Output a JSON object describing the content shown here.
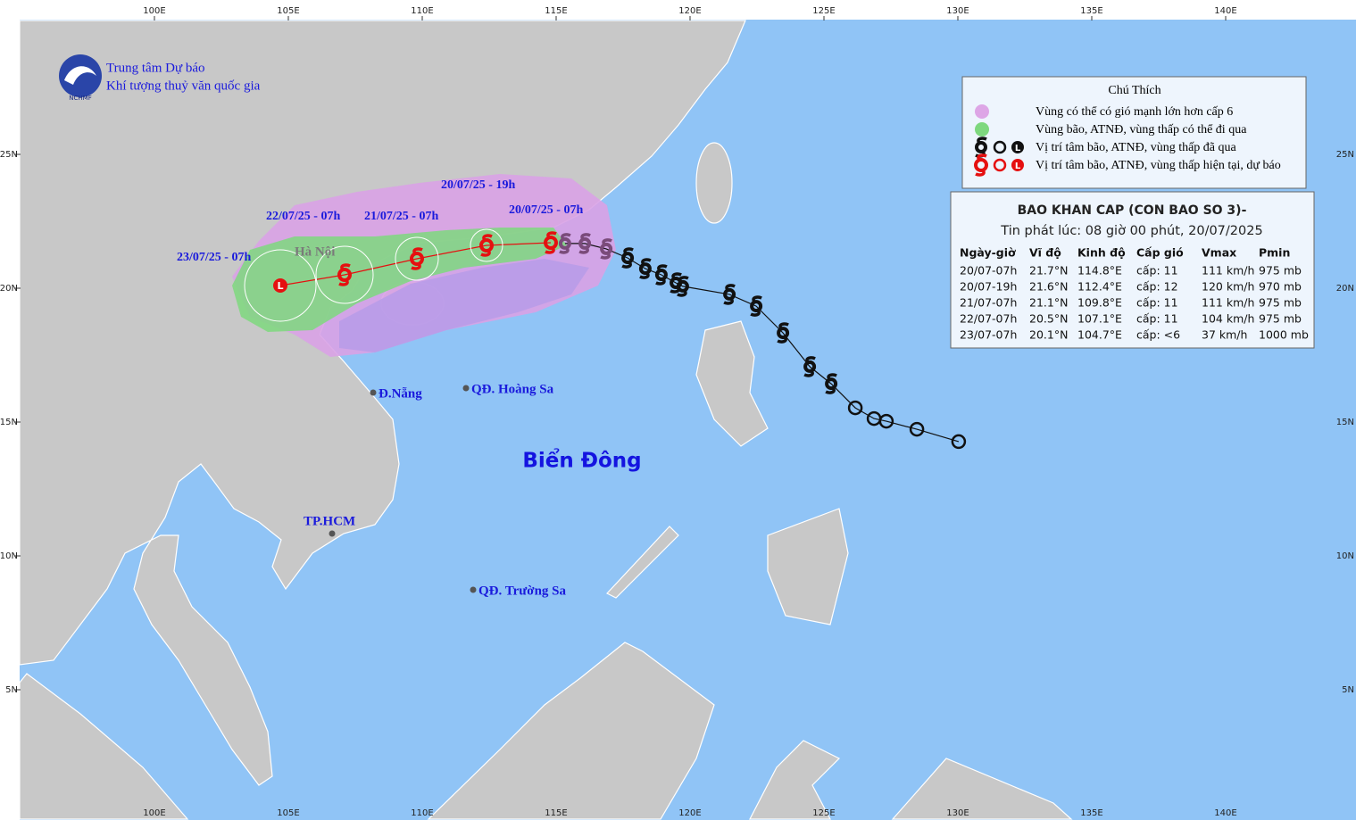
{
  "header": {
    "org_line1": "Trung tâm Dự báo",
    "org_line2": "Khí tượng thuỷ văn quốc gia",
    "logo_text": "NCHMF"
  },
  "legend": {
    "title": "Chú Thích",
    "items": [
      "Vùng có thể có gió mạnh lớn hơn cấp 6",
      "Vùng bão, ATNĐ, vùng thấp có thể đi qua",
      "Vị trí tâm bão, ATNĐ, vùng thấp đã qua",
      "Vị trí tâm bão, ATNĐ, vùng thấp hiện tại, dự báo"
    ]
  },
  "bulletin": {
    "title": "BAO KHAN CAP (CON BAO SO 3)-",
    "issued": "Tin phát lúc: 08 giờ 00 phút, 20/07/2025",
    "columns": [
      "Ngày-giờ",
      "Vĩ độ",
      "Kinh độ",
      "Cấp gió",
      "Vmax",
      "Pmin"
    ],
    "rows": [
      [
        "20/07-07h",
        "21.7°N",
        "114.8°E",
        "cấp: 11",
        "111 km/h",
        "975 mb"
      ],
      [
        "20/07-19h",
        "21.6°N",
        "112.4°E",
        "cấp: 12",
        "120 km/h",
        "970 mb"
      ],
      [
        "21/07-07h",
        "21.1°N",
        "109.8°E",
        "cấp: 11",
        "111 km/h",
        "975 mb"
      ],
      [
        "22/07-07h",
        "20.5°N",
        "107.1°E",
        "cấp: 11",
        "104 km/h",
        "975 mb"
      ],
      [
        "23/07-07h",
        "20.1°N",
        "104.7°E",
        "cấp: <6",
        "37 km/h",
        "1000 mb"
      ]
    ]
  },
  "map": {
    "xlim": [
      95,
      145
    ],
    "ylim": [
      0,
      30
    ],
    "xticks": [
      {
        "value": 100,
        "label": "100E"
      },
      {
        "value": 105,
        "label": "105E"
      },
      {
        "value": 110,
        "label": "110E"
      },
      {
        "value": 115,
        "label": "115E"
      },
      {
        "value": 120,
        "label": "120E"
      },
      {
        "value": 125,
        "label": "125E"
      },
      {
        "value": 130,
        "label": "130E"
      },
      {
        "value": 135,
        "label": "135E"
      },
      {
        "value": 140,
        "label": "140E"
      }
    ],
    "yticks": [
      {
        "value": 5,
        "label": "5N"
      },
      {
        "value": 10,
        "label": "10N"
      },
      {
        "value": 15,
        "label": "15N"
      },
      {
        "value": 20,
        "label": "20N"
      },
      {
        "value": 25,
        "label": "25N"
      }
    ],
    "low_symbol": "L",
    "past_track": {
      "lon": [
        130.03,
        128.47,
        127.33,
        126.87,
        126.17,
        125.27,
        124.47,
        123.47,
        122.47,
        121.47,
        119.73,
        119.47,
        118.93,
        118.33,
        117.67,
        116.87,
        116.07,
        115.33
      ],
      "lat": [
        14.27,
        14.73,
        15.03,
        15.13,
        15.53,
        16.43,
        17.07,
        18.33,
        19.33,
        19.77,
        20.07,
        20.2,
        20.5,
        20.73,
        21.13,
        21.47,
        21.67,
        21.67
      ],
      "kind": [
        "low",
        "low",
        "low",
        "low",
        "low",
        "storm",
        "storm",
        "storm",
        "storm",
        "storm",
        "storm",
        "storm",
        "storm",
        "storm",
        "storm",
        "storm",
        "storm",
        "storm"
      ]
    },
    "forecast_track": {
      "lon": [
        114.8,
        112.4,
        109.8,
        107.1,
        104.7
      ],
      "lat": [
        21.7,
        21.6,
        21.1,
        20.5,
        20.1
      ],
      "kind": [
        "storm",
        "storm",
        "storm",
        "storm",
        "low"
      ]
    },
    "forecast_labels": [
      "20/07/25 - 07h",
      "20/07/25 - 19h",
      "21/07/25 - 07h",
      "22/07/25 - 07h",
      "23/07/25 - 07h"
    ],
    "places": [
      "Hà Nội",
      "Đ.Nẵng",
      "QĐ. Hoàng Sa",
      "TP.HCM",
      "QĐ. Trường Sa",
      "Biển Đông"
    ]
  }
}
